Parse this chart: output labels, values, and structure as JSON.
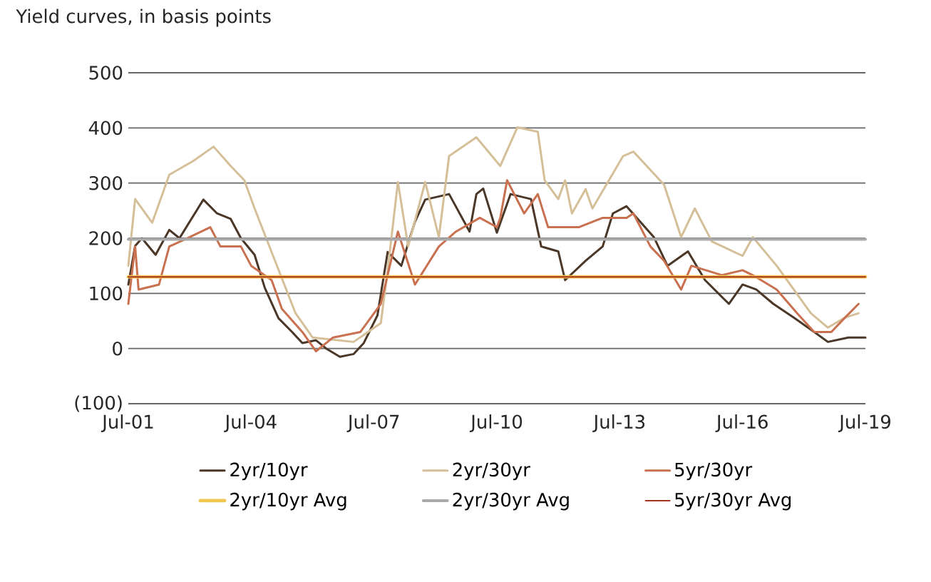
{
  "chart_data": {
    "type": "line",
    "subtitle": "Yield curves, in basis points",
    "xlim": [
      "2001-07",
      "2019-07"
    ],
    "xticks": [
      {
        "value": "2001-07",
        "label": "Jul-01"
      },
      {
        "value": "2004-07",
        "label": "Jul-04"
      },
      {
        "value": "2007-07",
        "label": "Jul-07"
      },
      {
        "value": "2010-07",
        "label": "Jul-10"
      },
      {
        "value": "2013-07",
        "label": "Jul-13"
      },
      {
        "value": "2016-07",
        "label": "Jul-16"
      },
      {
        "value": "2019-07",
        "label": "Jul-19"
      }
    ],
    "ylim": [
      -100,
      500
    ],
    "yticks": [
      {
        "value": -100,
        "label": "(100)"
      },
      0,
      100,
      200,
      300,
      400,
      500
    ],
    "grid": "y",
    "legend": "bottom",
    "marker": "none",
    "line_style": "solid",
    "series": [
      {
        "name": "2yr/10yr",
        "color": "#4a3728",
        "x": [
          "2001-07",
          "2001-09",
          "2001-11",
          "2002-03",
          "2002-07",
          "2002-10",
          "2003-02",
          "2003-05",
          "2003-09",
          "2004-01",
          "2004-04",
          "2004-08",
          "2004-11",
          "2005-03",
          "2005-07",
          "2005-10",
          "2006-02",
          "2006-05",
          "2006-09",
          "2007-01",
          "2007-04",
          "2007-08",
          "2007-11",
          "2008-03",
          "2008-07",
          "2008-10",
          "2009-05",
          "2009-11",
          "2010-01",
          "2010-03",
          "2010-07",
          "2010-11",
          "2011-05",
          "2011-08",
          "2012-01",
          "2012-03",
          "2012-09",
          "2013-02",
          "2013-05",
          "2013-09",
          "2014-05",
          "2014-09",
          "2015-03",
          "2015-08",
          "2016-03",
          "2016-07",
          "2016-11",
          "2017-04",
          "2017-10",
          "2018-04",
          "2018-08",
          "2019-02",
          "2019-07"
        ],
        "values": [
          116,
          186,
          200,
          170,
          215,
          200,
          240,
          270,
          245,
          235,
          200,
          170,
          110,
          55,
          30,
          10,
          15,
          0,
          -15,
          -10,
          10,
          60,
          175,
          150,
          230,
          270,
          280,
          212,
          280,
          290,
          210,
          280,
          271,
          185,
          176,
          124,
          159,
          185,
          245,
          258,
          202,
          150,
          176,
          124,
          81,
          116,
          107,
          81,
          56,
          30,
          12,
          20,
          20
        ]
      },
      {
        "name": "2yr/30yr",
        "color": "#d4bf98",
        "x": [
          "2001-07",
          "2001-09",
          "2002-02",
          "2002-07",
          "2003-02",
          "2003-08",
          "2004-01",
          "2004-05",
          "2004-08",
          "2005-02",
          "2005-08",
          "2006-01",
          "2007-01",
          "2007-09",
          "2007-11",
          "2008-02",
          "2008-05",
          "2008-10",
          "2009-02",
          "2009-05",
          "2010-01",
          "2010-08",
          "2011-01",
          "2011-07",
          "2011-09",
          "2012-01",
          "2012-03",
          "2012-05",
          "2012-09",
          "2012-11",
          "2013-08",
          "2013-11",
          "2014-08",
          "2015-01",
          "2015-05",
          "2015-10",
          "2016-07",
          "2016-10",
          "2017-05",
          "2017-10",
          "2018-03",
          "2018-08",
          "2019-01",
          "2019-05"
        ],
        "values": [
          150,
          271,
          228,
          315,
          340,
          366,
          331,
          305,
          254,
          159,
          64,
          20,
          12,
          46,
          142,
          302,
          185,
          302,
          202,
          349,
          383,
          331,
          401,
          393,
          305,
          271,
          305,
          245,
          289,
          254,
          349,
          357,
          297,
          202,
          254,
          194,
          168,
          202,
          150,
          107,
          64,
          38,
          56,
          64
        ]
      },
      {
        "name": "5yr/30yr",
        "color": "#c8704f",
        "x": [
          "2001-07",
          "2001-09",
          "2001-10",
          "2002-04",
          "2002-07",
          "2003-01",
          "2003-07",
          "2003-10",
          "2004-04",
          "2004-07",
          "2005-01",
          "2005-04",
          "2005-10",
          "2006-02",
          "2006-07",
          "2007-03",
          "2007-09",
          "2008-02",
          "2008-07",
          "2009-02",
          "2009-07",
          "2010-02",
          "2010-07",
          "2010-08",
          "2010-10",
          "2011-03",
          "2011-07",
          "2011-10",
          "2012-07",
          "2013-02",
          "2013-09",
          "2013-11",
          "2014-04",
          "2014-08",
          "2015-01",
          "2015-04",
          "2016-01",
          "2016-07",
          "2016-10",
          "2017-05",
          "2017-11",
          "2018-04",
          "2018-09",
          "2019-01",
          "2019-05"
        ],
        "values": [
          81,
          185,
          107,
          116,
          185,
          202,
          220,
          185,
          185,
          150,
          124,
          72,
          30,
          -5,
          20,
          30,
          81,
          212,
          116,
          185,
          212,
          237,
          220,
          237,
          305,
          245,
          280,
          220,
          220,
          237,
          237,
          245,
          185,
          159,
          107,
          150,
          133,
          142,
          133,
          107,
          64,
          30,
          30,
          56,
          81
        ]
      },
      {
        "name": "2yr/10yr Avg",
        "color": "#f0c850",
        "x": [
          "2001-07",
          "2019-07"
        ],
        "values": [
          130,
          130
        ]
      },
      {
        "name": "2yr/30yr Avg",
        "color": "#aaaaaa",
        "x": [
          "2001-07",
          "2019-07"
        ],
        "values": [
          198,
          198
        ]
      },
      {
        "name": "5yr/30yr Avg",
        "color": "#a83220",
        "x": [
          "2001-07",
          "2019-07"
        ],
        "values": [
          130,
          130
        ]
      }
    ]
  }
}
